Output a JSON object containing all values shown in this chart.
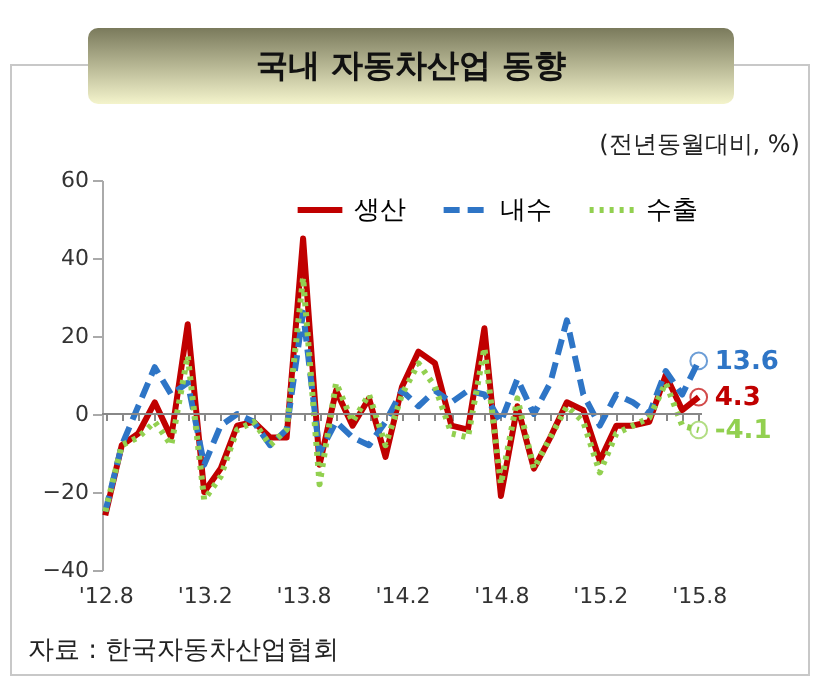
{
  "chart_data": {
    "type": "line",
    "title": "국내 자동차산업 동향",
    "subtitle": "(전년동월대비, %)",
    "annotations": [
      "자료 : 한국자동차산업협회"
    ],
    "categories": [
      "'12.8",
      null,
      null,
      null,
      null,
      null,
      "'13.2",
      null,
      null,
      null,
      null,
      null,
      "'13.8",
      null,
      null,
      null,
      null,
      null,
      "'14.2",
      null,
      null,
      null,
      null,
      null,
      "'14.8",
      null,
      null,
      null,
      null,
      null,
      "'15.2",
      null,
      null,
      null,
      null,
      null,
      "'15.8"
    ],
    "ylim": [
      -40,
      60
    ],
    "yticks": [
      -40,
      -20,
      0,
      20,
      40,
      60
    ],
    "legend": "top right",
    "ref_lines": [
      {
        "axis": "y",
        "value": 0,
        "color": "#888888"
      }
    ],
    "series": [
      {
        "name": "생산",
        "color": "#c00000",
        "line_style": "solid",
        "values": [
          -26,
          -8,
          -5,
          3,
          -6,
          23,
          -20,
          -14,
          -3,
          -2,
          -6,
          -6,
          45,
          -13,
          6,
          -3,
          4,
          -11,
          7,
          16,
          13,
          -3,
          -4,
          22,
          -21,
          2,
          -14,
          -6,
          3,
          1,
          -12,
          -3,
          -3,
          -2,
          10,
          1,
          4.3
        ],
        "value_labels": [
          null,
          null,
          null,
          null,
          null,
          null,
          null,
          null,
          null,
          null,
          null,
          null,
          null,
          null,
          null,
          null,
          null,
          null,
          null,
          null,
          null,
          null,
          null,
          null,
          null,
          null,
          null,
          null,
          null,
          null,
          null,
          null,
          null,
          null,
          null,
          null,
          "4.3"
        ]
      },
      {
        "name": "내수",
        "color": "#2e75c6",
        "line_style": "dashed",
        "values": [
          -25,
          -8,
          2,
          12,
          5,
          8,
          -13,
          -3,
          0,
          -2,
          -8,
          -4,
          26,
          -10,
          -2,
          -6,
          -8,
          -2,
          6,
          2,
          6,
          3,
          6,
          5,
          -2,
          9,
          0,
          8,
          24,
          5,
          -3,
          5,
          3,
          0,
          11,
          5,
          13.6
        ],
        "value_labels": [
          null,
          null,
          null,
          null,
          null,
          null,
          null,
          null,
          null,
          null,
          null,
          null,
          null,
          null,
          null,
          null,
          null,
          null,
          null,
          null,
          null,
          null,
          null,
          null,
          null,
          null,
          null,
          null,
          null,
          null,
          null,
          null,
          null,
          null,
          null,
          null,
          "13.6"
        ]
      },
      {
        "name": "수출",
        "color": "#92d050",
        "line_style": "dotted",
        "values": [
          -25,
          -8,
          -6,
          -2,
          -8,
          15,
          -22,
          -16,
          -4,
          -2,
          -8,
          -4,
          35,
          -18,
          8,
          -2,
          5,
          -8,
          5,
          13,
          7,
          -5,
          -6,
          17,
          -18,
          4,
          -14,
          -6,
          2,
          -2,
          -15,
          -5,
          -3,
          -1,
          8,
          -3,
          -4.1
        ],
        "value_labels": [
          null,
          null,
          null,
          null,
          null,
          null,
          null,
          null,
          null,
          null,
          null,
          null,
          null,
          null,
          null,
          null,
          null,
          null,
          null,
          null,
          null,
          null,
          null,
          null,
          null,
          null,
          null,
          null,
          null,
          null,
          null,
          null,
          null,
          null,
          null,
          null,
          "-4.1"
        ]
      }
    ]
  }
}
